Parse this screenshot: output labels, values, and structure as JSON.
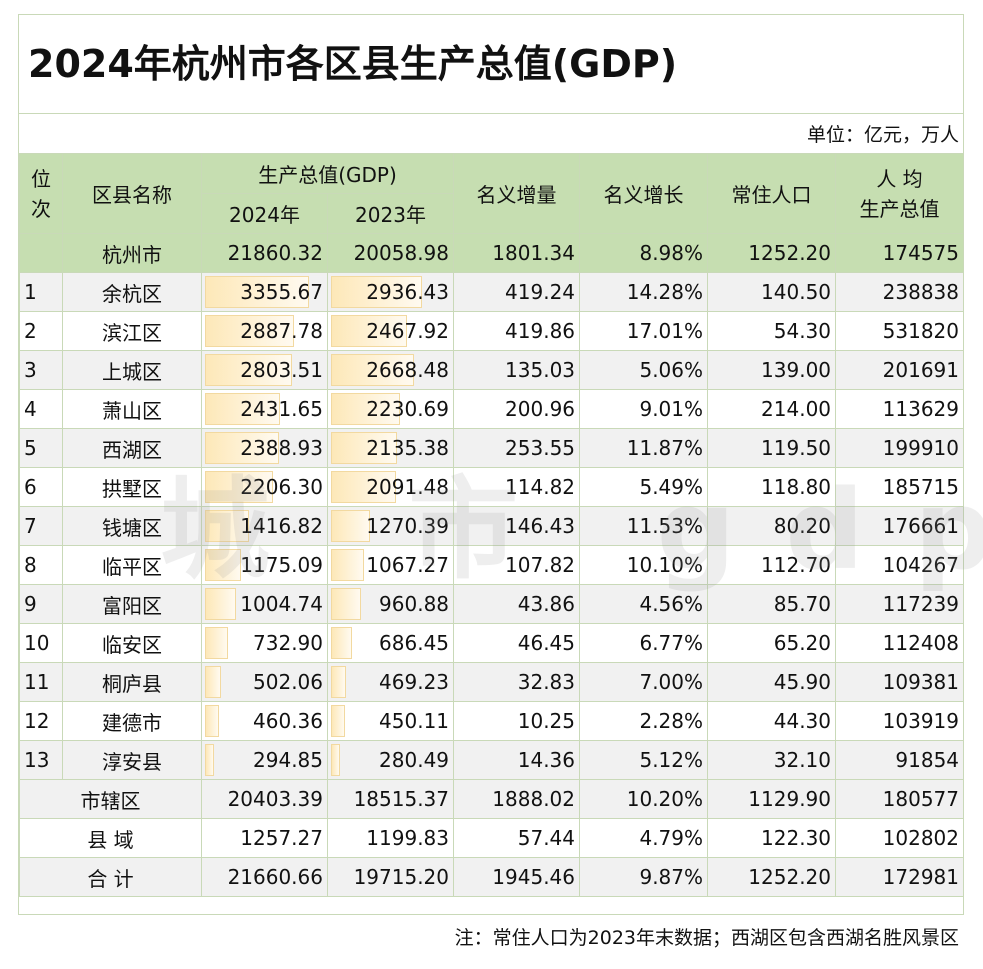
{
  "title": "2024年杭州市各区县生产总值(GDP)",
  "unit_note": "单位：亿元，万人",
  "headers": {
    "rank": "位次",
    "name": "区县名称",
    "gdp": "生产总值(GDP)",
    "y2024": "2024年",
    "y2023": "2023年",
    "nominal_increase": "名义增量",
    "nominal_growth": "名义增长",
    "population": "常住人口",
    "per_capita_line1": "人 均",
    "per_capita_line2": "生产总值"
  },
  "city": {
    "name": "杭州市",
    "gdp2024": "21860.32",
    "gdp2023": "20058.98",
    "increase": "1801.34",
    "growth": "8.98%",
    "population": "1252.20",
    "per_capita": "174575"
  },
  "districts": [
    {
      "rank": "1",
      "name": "余杭区",
      "gdp2024": "3355.67",
      "gdp2023": "2936.43",
      "increase": "419.24",
      "growth": "14.28%",
      "population": "140.50",
      "per_capita": "238838"
    },
    {
      "rank": "2",
      "name": "滨江区",
      "gdp2024": "2887.78",
      "gdp2023": "2467.92",
      "increase": "419.86",
      "growth": "17.01%",
      "population": "54.30",
      "per_capita": "531820"
    },
    {
      "rank": "3",
      "name": "上城区",
      "gdp2024": "2803.51",
      "gdp2023": "2668.48",
      "increase": "135.03",
      "growth": "5.06%",
      "population": "139.00",
      "per_capita": "201691"
    },
    {
      "rank": "4",
      "name": "萧山区",
      "gdp2024": "2431.65",
      "gdp2023": "2230.69",
      "increase": "200.96",
      "growth": "9.01%",
      "population": "214.00",
      "per_capita": "113629"
    },
    {
      "rank": "5",
      "name": "西湖区",
      "gdp2024": "2388.93",
      "gdp2023": "2135.38",
      "increase": "253.55",
      "growth": "11.87%",
      "population": "119.50",
      "per_capita": "199910"
    },
    {
      "rank": "6",
      "name": "拱墅区",
      "gdp2024": "2206.30",
      "gdp2023": "2091.48",
      "increase": "114.82",
      "growth": "5.49%",
      "population": "118.80",
      "per_capita": "185715"
    },
    {
      "rank": "7",
      "name": "钱塘区",
      "gdp2024": "1416.82",
      "gdp2023": "1270.39",
      "increase": "146.43",
      "growth": "11.53%",
      "population": "80.20",
      "per_capita": "176661"
    },
    {
      "rank": "8",
      "name": "临平区",
      "gdp2024": "1175.09",
      "gdp2023": "1067.27",
      "increase": "107.82",
      "growth": "10.10%",
      "population": "112.70",
      "per_capita": "104267"
    },
    {
      "rank": "9",
      "name": "富阳区",
      "gdp2024": "1004.74",
      "gdp2023": "960.88",
      "increase": "43.86",
      "growth": "4.56%",
      "population": "85.70",
      "per_capita": "117239"
    },
    {
      "rank": "10",
      "name": "临安区",
      "gdp2024": "732.90",
      "gdp2023": "686.45",
      "increase": "46.45",
      "growth": "6.77%",
      "population": "65.20",
      "per_capita": "112408"
    },
    {
      "rank": "11",
      "name": "桐庐县",
      "gdp2024": "502.06",
      "gdp2023": "469.23",
      "increase": "32.83",
      "growth": "7.00%",
      "population": "45.90",
      "per_capita": "109381"
    },
    {
      "rank": "12",
      "name": "建德市",
      "gdp2024": "460.36",
      "gdp2023": "450.11",
      "increase": "10.25",
      "growth": "2.28%",
      "population": "44.30",
      "per_capita": "103919"
    },
    {
      "rank": "13",
      "name": "淳安县",
      "gdp2024": "294.85",
      "gdp2023": "280.49",
      "increase": "14.36",
      "growth": "5.12%",
      "population": "32.10",
      "per_capita": "91854"
    }
  ],
  "aggregates": [
    {
      "name": "市辖区",
      "gdp2024": "20403.39",
      "gdp2023": "18515.37",
      "increase": "1888.02",
      "growth": "10.20%",
      "population": "1129.90",
      "per_capita": "180577"
    },
    {
      "name": "县 域",
      "gdp2024": "1257.27",
      "gdp2023": "1199.83",
      "increase": "57.44",
      "growth": "4.79%",
      "population": "122.30",
      "per_capita": "102802"
    },
    {
      "name": "合 计",
      "gdp2024": "21660.66",
      "gdp2023": "19715.20",
      "increase": "1945.46",
      "growth": "9.87%",
      "population": "1252.20",
      "per_capita": "172981"
    }
  ],
  "footnote": "注：常住人口为2023年末数据；西湖区包含西湖名胜风景区",
  "watermark": "城 市 gdp 吧",
  "colors": {
    "header_bg": "#c6deb1",
    "stripe": "#f1f1f1",
    "bar_fill": "#fde8b8",
    "border": "#c9d9b8"
  }
}
